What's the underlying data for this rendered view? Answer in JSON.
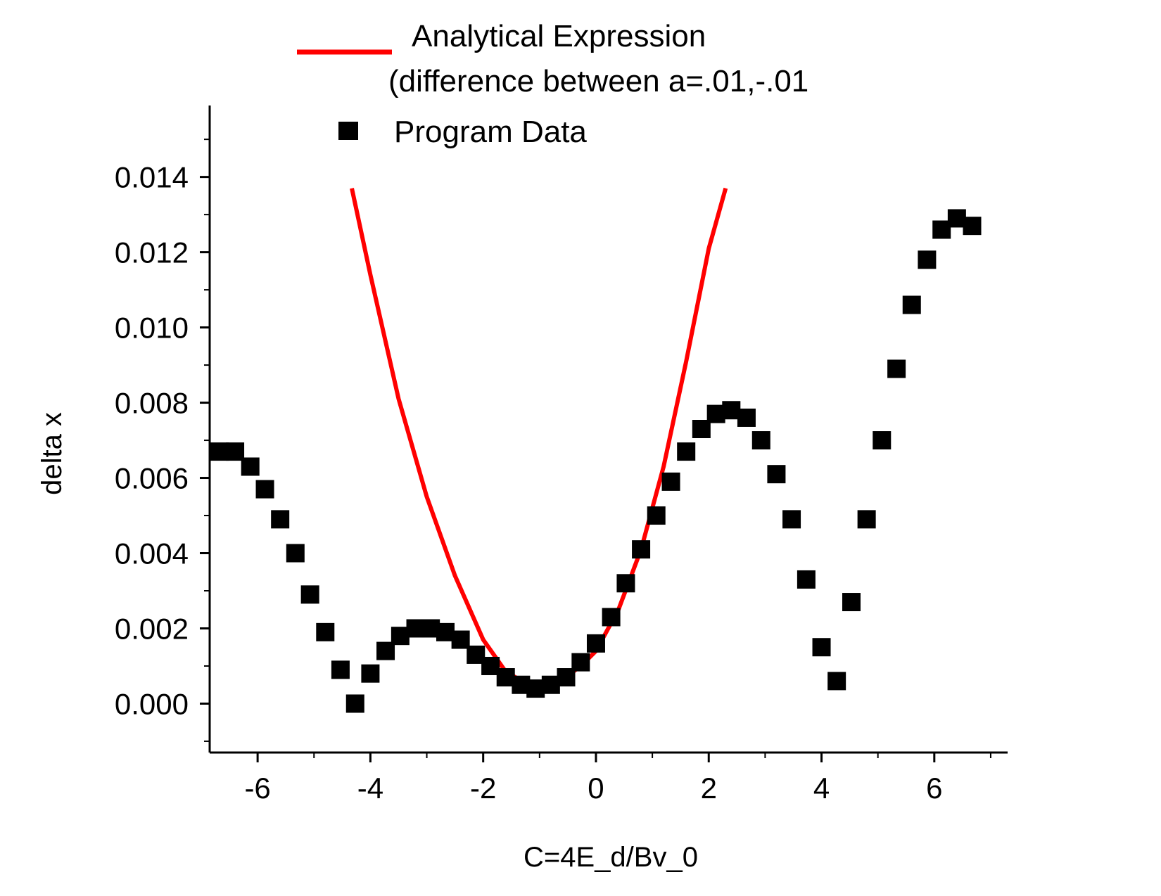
{
  "chart_data": {
    "type": "scatter",
    "xlabel": "C=4E_d/Bv_0",
    "ylabel": "delta x",
    "xlim": [
      -6.85,
      7.3
    ],
    "ylim": [
      -0.0013,
      0.0159
    ],
    "x_ticks": [
      -6,
      -4,
      -2,
      0,
      2,
      4,
      6
    ],
    "x_tick_labels": [
      "-6",
      "-4",
      "-2",
      "0",
      "2",
      "4",
      "6"
    ],
    "y_ticks": [
      0.0,
      0.002,
      0.004,
      0.006,
      0.008,
      0.01,
      0.012,
      0.014
    ],
    "y_tick_labels": [
      "0.000",
      "0.002",
      "0.004",
      "0.006",
      "0.008",
      "0.010",
      "0.012",
      "0.014"
    ],
    "grid": false,
    "legend_position": "top",
    "colors": {
      "line": "#ff0000",
      "markers": "#000000",
      "axes": "#000000"
    },
    "series": [
      {
        "name": "Analytical Expression",
        "name_line2": "(difference between a=.01,-.01",
        "kind": "line",
        "x": [
          -4.33,
          -4.0,
          -3.5,
          -3.0,
          -2.5,
          -2.0,
          -1.6,
          -1.2,
          -1.0,
          -0.6,
          -0.2,
          0.0,
          0.4,
          0.8,
          1.2,
          1.6,
          2.0,
          2.3
        ],
        "y": [
          0.0137,
          0.0114,
          0.0081,
          0.0055,
          0.0034,
          0.0017,
          0.00085,
          0.0005,
          0.00045,
          0.0006,
          0.0011,
          0.0014,
          0.0025,
          0.0041,
          0.0063,
          0.0091,
          0.0121,
          0.0137
        ]
      },
      {
        "name": "Program Data",
        "kind": "scatter",
        "x": [
          -6.67,
          -6.4,
          -6.13,
          -5.87,
          -5.6,
          -5.33,
          -5.07,
          -4.8,
          -4.53,
          -4.27,
          -4.0,
          -3.73,
          -3.47,
          -3.2,
          -2.93,
          -2.67,
          -2.4,
          -2.13,
          -1.87,
          -1.6,
          -1.33,
          -1.07,
          -0.8,
          -0.53,
          -0.27,
          0.0,
          0.27,
          0.53,
          0.8,
          1.07,
          1.33,
          1.6,
          1.87,
          2.13,
          2.4,
          2.67,
          2.93,
          3.2,
          3.47,
          3.73,
          4.0,
          4.27,
          4.53,
          4.8,
          5.07,
          5.33,
          5.6,
          5.87,
          6.13,
          6.4,
          6.67
        ],
        "y": [
          0.0067,
          0.0067,
          0.0063,
          0.0057,
          0.0049,
          0.004,
          0.0029,
          0.0019,
          0.0009,
          0.0,
          0.0008,
          0.0014,
          0.0018,
          0.002,
          0.002,
          0.0019,
          0.0017,
          0.0013,
          0.001,
          0.0007,
          0.0005,
          0.0004,
          0.0005,
          0.0007,
          0.0011,
          0.0016,
          0.0023,
          0.0032,
          0.0041,
          0.005,
          0.0059,
          0.0067,
          0.0073,
          0.0077,
          0.0078,
          0.0076,
          0.007,
          0.0061,
          0.0049,
          0.0033,
          0.0015,
          0.0006,
          0.0027,
          0.0049,
          0.007,
          0.0089,
          0.0106,
          0.0118,
          0.0126,
          0.0129,
          0.0127
        ]
      }
    ]
  }
}
